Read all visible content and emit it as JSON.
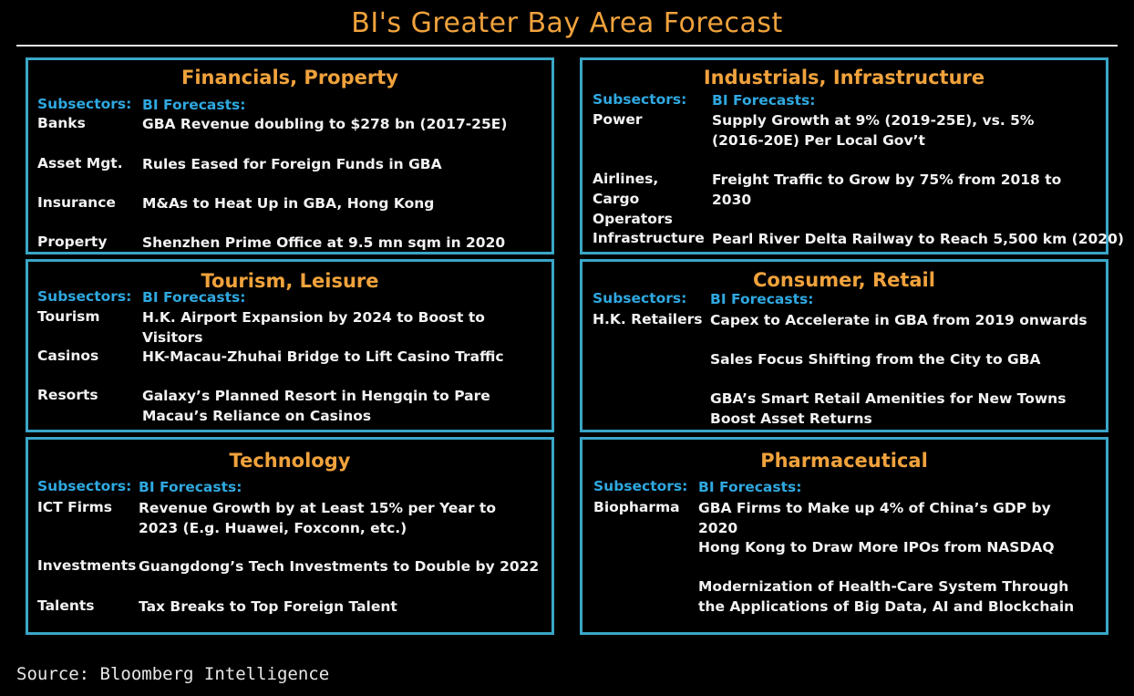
{
  "title": "BI's Greater Bay Area Forecast",
  "source": "Source: Bloomberg Intelligence",
  "header_subsectors": "Subsectors:",
  "header_forecasts": "BI Forecasts:",
  "panels": [
    {
      "title": "Financials, Property",
      "rows": [
        {
          "subsector": "Banks",
          "forecast": "GBA Revenue doubling to $278 bn (2017-25E)"
        },
        {
          "subsector": "Asset Mgt.",
          "forecast": "Rules Eased for Foreign Funds in GBA"
        },
        {
          "subsector": "Insurance",
          "forecast": "M&As to Heat Up in GBA, Hong Kong"
        },
        {
          "subsector": "Property",
          "forecast": "Shenzhen Prime Office at 9.5 mn sqm in 2020"
        }
      ]
    },
    {
      "title": "Industrials, Infrastructure",
      "rows": [
        {
          "subsector": "Power",
          "forecast": "Supply Growth at 9% (2019-25E), vs. 5% (2016-20E) Per Local Gov’t"
        },
        {
          "subsector": "Airlines, Cargo Operators",
          "forecast": "Freight Traffic to Grow by 75% from 2018 to 2030"
        },
        {
          "subsector": "Infrastructure",
          "forecast": "Pearl River Delta Railway to Reach 5,500 km (2020)"
        }
      ]
    },
    {
      "title": "Tourism, Leisure",
      "rows": [
        {
          "subsector": "Tourism",
          "forecast": "H.K. Airport Expansion by 2024 to Boost to Visitors"
        },
        {
          "subsector": "Casinos",
          "forecast": "HK-Macau-Zhuhai Bridge to Lift Casino Traffic"
        },
        {
          "subsector": "Resorts",
          "forecast": "Galaxy’s Planned Resort in Hengqin to Pare Macau’s Reliance on Casinos"
        }
      ]
    },
    {
      "title": "Consumer, Retail",
      "rows": [
        {
          "subsector": "H.K. Retailers",
          "forecast": "Capex to Accelerate in GBA from 2019 onwards"
        },
        {
          "subsector": "",
          "forecast": "Sales Focus Shifting from the City to GBA"
        },
        {
          "subsector": "",
          "forecast": "GBA’s Smart Retail Amenities for New Towns Boost Asset Returns"
        }
      ]
    },
    {
      "title": "Technology",
      "rows": [
        {
          "subsector": "ICT Firms",
          "forecast": "Revenue Growth by at Least 15% per Year to 2023 (E.g. Huawei, Foxconn, etc.)"
        },
        {
          "subsector": "Investments",
          "forecast": "Guangdong’s Tech Investments to Double by 2022"
        },
        {
          "subsector": "Talents",
          "forecast": "Tax Breaks to Top Foreign Talent"
        }
      ]
    },
    {
      "title": "Pharmaceutical",
      "rows": [
        {
          "subsector": "Biopharma",
          "forecast": "GBA Firms to Make up 4% of China’s GDP by 2020"
        },
        {
          "subsector": "",
          "forecast": "Hong Kong to Draw More IPOs from NASDAQ"
        },
        {
          "subsector": "",
          "forecast": "Modernization of Health-Care System Through the Applications of Big Data, AI and Blockchain"
        }
      ]
    }
  ]
}
